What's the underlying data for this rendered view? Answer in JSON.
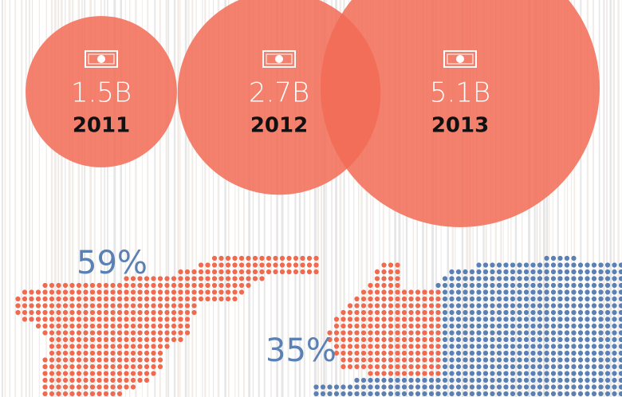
{
  "chart_data": {
    "type": "bubble",
    "categories": [
      "2011",
      "2012",
      "2013"
    ],
    "values": [
      1.5,
      2.7,
      5.1
    ],
    "value_labels": [
      "1.5B",
      "2.7B",
      "5.1B"
    ],
    "color": "#f26b55"
  },
  "map": {
    "labels": [
      "59%",
      "35%"
    ],
    "colors": [
      "#ef6a4f",
      "#5b80b4"
    ]
  }
}
